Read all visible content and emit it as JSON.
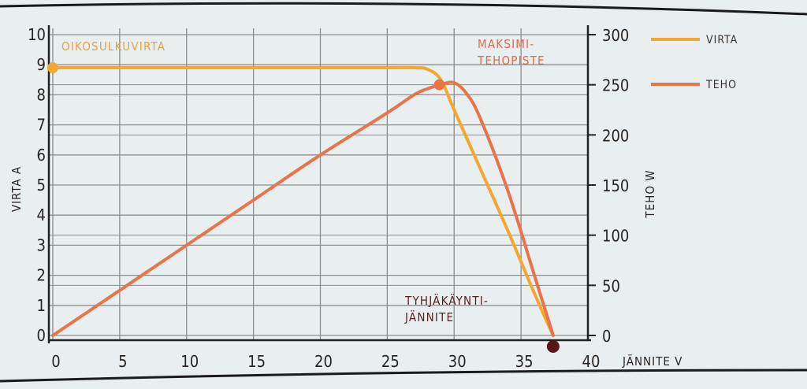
{
  "chart_data": {
    "type": "line",
    "x_axis": {
      "label": "JÄNNITE V",
      "range": [
        0,
        40
      ],
      "ticks": [
        0,
        5,
        10,
        15,
        20,
        25,
        30,
        35,
        40
      ]
    },
    "y_left": {
      "label": "VIRTA A",
      "range": [
        0,
        10
      ],
      "ticks": [
        0,
        1,
        2,
        3,
        4,
        5,
        6,
        7,
        8,
        9,
        10
      ]
    },
    "y_right": {
      "label": "TEHO W",
      "range": [
        0,
        300
      ],
      "ticks": [
        0,
        50,
        100,
        150,
        200,
        250,
        300
      ]
    },
    "grid": true,
    "legend_position": "top-right",
    "colors": {
      "virta": "#f0a830",
      "teho": "#e8744a",
      "end_point": "#5a1616",
      "grid": "#8d8d8d",
      "frame": "#222222"
    },
    "series": [
      {
        "name": "VIRTA",
        "axis": "left",
        "x": [
          0,
          5,
          10,
          15,
          20,
          25,
          27,
          28,
          29,
          30,
          32,
          34,
          36,
          37.4
        ],
        "y": [
          8.9,
          8.9,
          8.9,
          8.9,
          8.9,
          8.9,
          8.9,
          8.85,
          8.5,
          7.5,
          5.5,
          3.5,
          1.4,
          0
        ]
      },
      {
        "name": "TEHO",
        "axis": "right",
        "x": [
          0,
          5,
          10,
          15,
          20,
          25,
          27,
          28,
          29,
          30,
          31,
          32,
          34,
          36,
          37.4
        ],
        "y": [
          0,
          45,
          90,
          135,
          180,
          222,
          240,
          246,
          250,
          252,
          240,
          215,
          145,
          60,
          0
        ]
      }
    ],
    "annotations": [
      {
        "text": "OIKOSULKUVIRTA",
        "x": 0,
        "y": 8.9,
        "axis": "left"
      },
      {
        "text": "MAKSIMI-\nTEHOPISTE",
        "x": 28.9,
        "y": 250,
        "axis": "right"
      },
      {
        "text": "TYHJÄKÄYNTI-\nJÄNNITE",
        "x": 37.4,
        "y": 0,
        "axis": "left"
      }
    ]
  }
}
